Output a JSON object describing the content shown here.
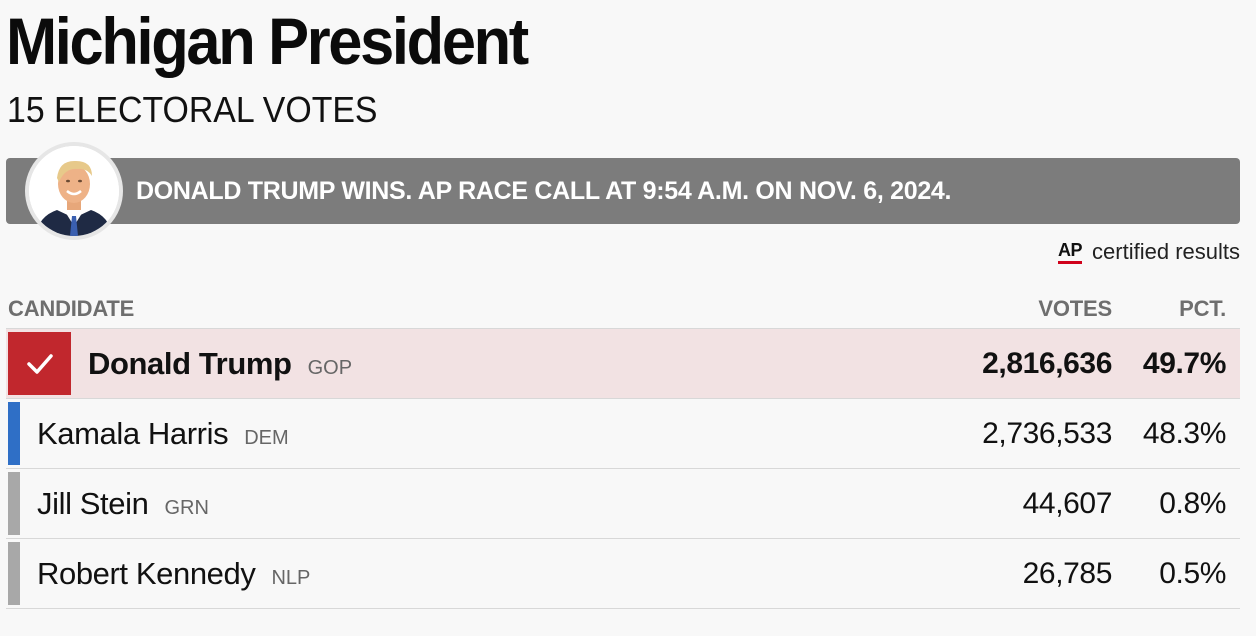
{
  "header": {
    "title": "Michigan President",
    "subtitle": "15 ELECTORAL VOTES"
  },
  "banner": {
    "text": "DONALD TRUMP WINS. AP RACE CALL AT 9:54 A.M. ON NOV. 6, 2024.",
    "avatar_icon": "candidate-portrait"
  },
  "credit": {
    "logo": "AP",
    "text": "certified results"
  },
  "table": {
    "headers": {
      "candidate": "CANDIDATE",
      "votes": "VOTES",
      "pct": "PCT."
    },
    "rows": [
      {
        "name": "Donald Trump",
        "party": "GOP",
        "votes": "2,816,636",
        "pct": "49.7%",
        "winner": true,
        "color": "#c1272d"
      },
      {
        "name": "Kamala Harris",
        "party": "DEM",
        "votes": "2,736,533",
        "pct": "48.3%",
        "winner": false,
        "color": "#2f6fc6"
      },
      {
        "name": "Jill Stein",
        "party": "GRN",
        "votes": "44,607",
        "pct": "0.8%",
        "winner": false,
        "color": "#a8a8a8"
      },
      {
        "name": "Robert Kennedy",
        "party": "NLP",
        "votes": "26,785",
        "pct": "0.5%",
        "winner": false,
        "color": "#a8a8a8"
      }
    ]
  },
  "colors": {
    "winner_bg": "#f2e2e3",
    "gop": "#c1272d",
    "dem": "#2f6fc6",
    "other": "#a8a8a8",
    "banner_bg": "#7c7c7c"
  }
}
